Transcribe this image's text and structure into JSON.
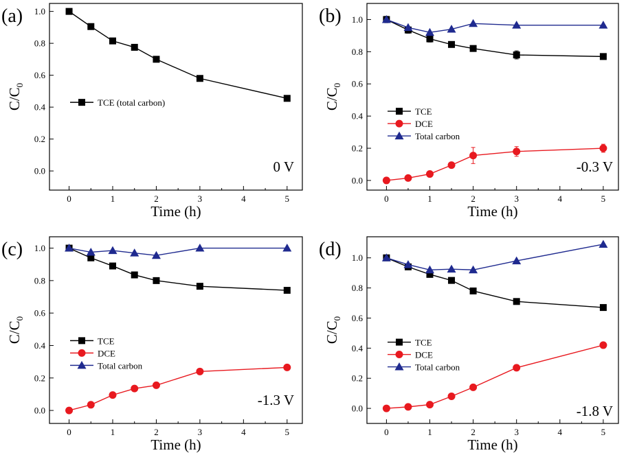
{
  "chart_data": [
    {
      "panel_label": "(a)",
      "type": "line",
      "xlabel": "Time (h)",
      "ylabel": "C/C0",
      "ylabel_main": "C/C",
      "ylabel_sub": "0",
      "annotation": "0 V",
      "xlim": [
        -0.45,
        5.35
      ],
      "ylim": [
        -0.12,
        1.05
      ],
      "xticks": [
        0,
        1,
        2,
        3,
        4,
        5
      ],
      "yticks": [
        0.0,
        0.2,
        0.4,
        0.6,
        0.8,
        1.0
      ],
      "ytick_labels": [
        "0.0",
        "0.2",
        "0.4",
        "0.6",
        "0.8",
        "1.0"
      ],
      "x": [
        0,
        0.5,
        1,
        1.5,
        2,
        3,
        5
      ],
      "series": [
        {
          "name": "TCE (total carbon)",
          "marker": "square",
          "color": "#000000",
          "values": [
            1.0,
            0.905,
            0.815,
            0.775,
            0.7,
            0.58,
            0.455
          ]
        }
      ]
    },
    {
      "panel_label": "(b)",
      "type": "line",
      "xlabel": "Time (h)",
      "ylabel": "C/C0",
      "ylabel_main": "C/C",
      "ylabel_sub": "0",
      "annotation": "-0.3 V",
      "xlim": [
        -0.45,
        5.35
      ],
      "ylim": [
        -0.06,
        1.1
      ],
      "xticks": [
        0,
        1,
        2,
        3,
        4,
        5
      ],
      "yticks": [
        0.0,
        0.2,
        0.4,
        0.6,
        0.8,
        1.0
      ],
      "ytick_labels": [
        "0.0",
        "0.2",
        "0.4",
        "0.6",
        "0.8",
        "1.0"
      ],
      "x": [
        0,
        0.5,
        1,
        1.5,
        2,
        3,
        5
      ],
      "series": [
        {
          "name": "TCE",
          "marker": "square",
          "color": "#000000",
          "values": [
            1.0,
            0.935,
            0.88,
            0.845,
            0.82,
            0.78,
            0.77
          ],
          "errors": [
            0.02,
            0.02,
            0.02,
            0.015,
            0.01,
            0.025,
            0.015
          ]
        },
        {
          "name": "DCE",
          "marker": "circle",
          "color": "#e8191f",
          "values": [
            0.0,
            0.015,
            0.04,
            0.095,
            0.155,
            0.18,
            0.2
          ],
          "errors": [
            0,
            0,
            0,
            0,
            0.05,
            0.03,
            0.025
          ]
        },
        {
          "name": "Total carbon",
          "marker": "triangle",
          "color": "#1f2a8f",
          "values": [
            1.0,
            0.95,
            0.92,
            0.94,
            0.975,
            0.965,
            0.965
          ]
        }
      ]
    },
    {
      "panel_label": "(c)",
      "type": "line",
      "xlabel": "Time (h)",
      "ylabel": "C/C0",
      "ylabel_main": "C/C",
      "ylabel_sub": "0",
      "annotation": "-1.3 V",
      "xlim": [
        -0.45,
        5.35
      ],
      "ylim": [
        -0.08,
        1.07
      ],
      "xticks": [
        0,
        1,
        2,
        3,
        4,
        5
      ],
      "yticks": [
        0.0,
        0.2,
        0.4,
        0.6,
        0.8,
        1.0
      ],
      "ytick_labels": [
        "0.0",
        "0.2",
        "0.4",
        "0.6",
        "0.8",
        "1.0"
      ],
      "x": [
        0,
        0.5,
        1,
        1.5,
        2,
        3,
        5
      ],
      "series": [
        {
          "name": "TCE",
          "marker": "square",
          "color": "#000000",
          "values": [
            1.0,
            0.94,
            0.89,
            0.835,
            0.8,
            0.765,
            0.74
          ]
        },
        {
          "name": "DCE",
          "marker": "circle",
          "color": "#e8191f",
          "values": [
            0.0,
            0.035,
            0.095,
            0.135,
            0.155,
            0.24,
            0.265
          ]
        },
        {
          "name": "Total carbon",
          "marker": "triangle",
          "color": "#1f2a8f",
          "values": [
            1.0,
            0.975,
            0.985,
            0.97,
            0.955,
            1.0,
            1.0
          ]
        }
      ]
    },
    {
      "panel_label": "(d)",
      "type": "line",
      "xlabel": "Time (h)",
      "ylabel": "C/C0",
      "ylabel_main": "C/C",
      "ylabel_sub": "0",
      "annotation": "-1.8 V",
      "xlim": [
        -0.45,
        5.35
      ],
      "ylim": [
        -0.1,
        1.14
      ],
      "xticks": [
        0,
        1,
        2,
        3,
        4,
        5
      ],
      "yticks": [
        0.0,
        0.2,
        0.4,
        0.6,
        0.8,
        1.0
      ],
      "ytick_labels": [
        "0.0",
        "0.2",
        "0.4",
        "0.6",
        "0.8",
        "1.0"
      ],
      "x": [
        0,
        0.5,
        1,
        1.5,
        2,
        3,
        5
      ],
      "series": [
        {
          "name": "TCE",
          "marker": "square",
          "color": "#000000",
          "values": [
            1.0,
            0.94,
            0.89,
            0.85,
            0.78,
            0.71,
            0.67
          ]
        },
        {
          "name": "DCE",
          "marker": "circle",
          "color": "#e8191f",
          "values": [
            0.0,
            0.01,
            0.025,
            0.08,
            0.14,
            0.27,
            0.42
          ]
        },
        {
          "name": "Total carbon",
          "marker": "triangle",
          "color": "#1f2a8f",
          "values": [
            1.0,
            0.955,
            0.92,
            0.925,
            0.92,
            0.98,
            1.09
          ]
        }
      ]
    }
  ]
}
